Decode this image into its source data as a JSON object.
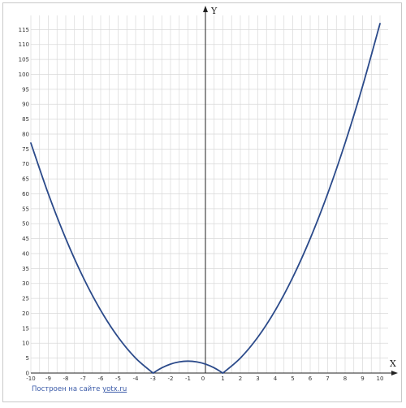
{
  "colors": {
    "curve": "#2b4a8a",
    "grid": "#d9d9d9",
    "axis": "#222222",
    "frame": "#c9c9c9"
  },
  "credit": {
    "prefix": "Построен на сайте",
    "link": "yotx.ru"
  },
  "chart_data": {
    "type": "line",
    "title": "",
    "xlabel": "X",
    "ylabel": "Y",
    "xlim": [
      -10,
      10
    ],
    "ylim": [
      0,
      117
    ],
    "grid": true,
    "x_ticks": [
      -10,
      -9,
      -8,
      -7,
      -6,
      -5,
      -4,
      -3,
      -2,
      -1,
      0,
      1,
      2,
      3,
      4,
      5,
      6,
      7,
      8,
      9,
      10
    ],
    "y_ticks": [
      0,
      5,
      10,
      15,
      20,
      25,
      30,
      35,
      40,
      45,
      50,
      55,
      60,
      65,
      70,
      75,
      80,
      85,
      90,
      95,
      100,
      105,
      110,
      115
    ],
    "series": [
      {
        "x": [
          -10,
          -9,
          -8,
          -7,
          -6,
          -5,
          -4,
          -3,
          -2.5,
          -2,
          -1.5,
          -1,
          -0.5,
          0,
          0.5,
          1,
          2,
          3,
          4,
          5,
          6,
          7,
          8,
          9,
          10
        ],
        "y": [
          77,
          60,
          45,
          32,
          21,
          12,
          5,
          0,
          1.75,
          3,
          3.75,
          4,
          3.75,
          3,
          1.75,
          0,
          5,
          12,
          21,
          32,
          45,
          60,
          77,
          96,
          117
        ]
      }
    ]
  }
}
